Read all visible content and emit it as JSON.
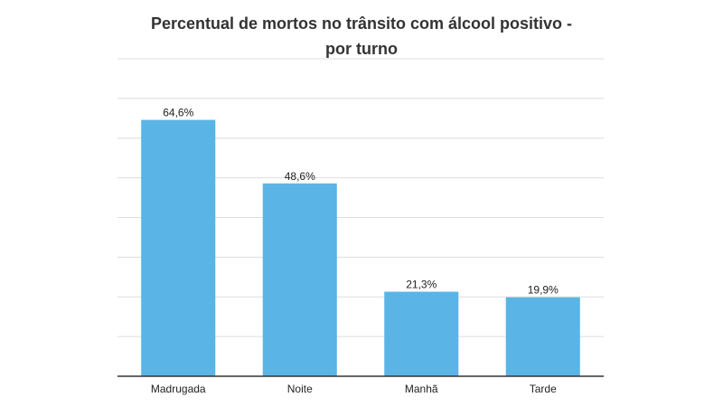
{
  "chart_data": {
    "type": "bar",
    "title_lines": [
      "Percentual de mortos no trânsito com álcool positivo -",
      "por turno"
    ],
    "categories": [
      "Madrugada",
      "Noite",
      "Manhã",
      "Tarde"
    ],
    "values": [
      64.6,
      48.6,
      21.3,
      19.9
    ],
    "value_labels": [
      "64,6%",
      "48,6%",
      "21,3%",
      "19,9%"
    ],
    "ylim": [
      0,
      80
    ],
    "grid_step": 10,
    "grid": true,
    "legend": "none",
    "bar_color": "#5ab4e5"
  }
}
